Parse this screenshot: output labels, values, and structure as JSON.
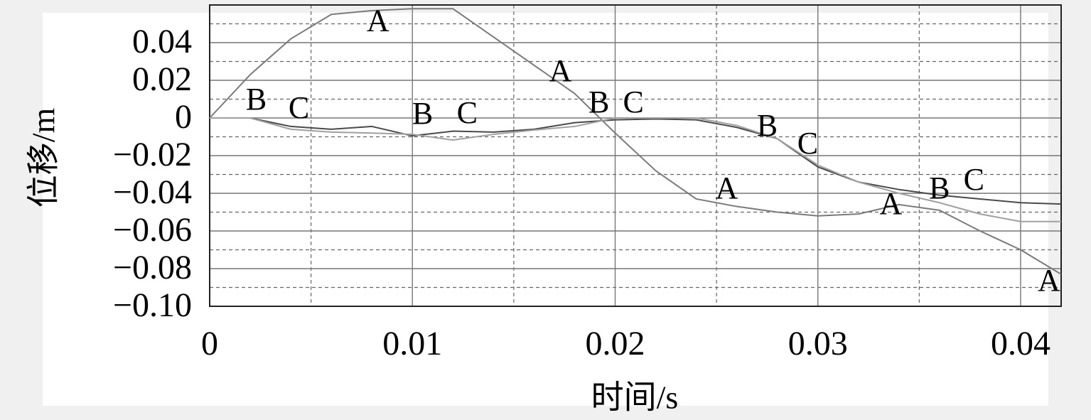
{
  "chart_data": {
    "type": "line",
    "x_label": "时间/s",
    "y_label": "位移/m",
    "x": [
      0,
      0.002,
      0.004,
      0.006,
      0.008,
      0.01,
      0.012,
      0.014,
      0.016,
      0.018,
      0.02,
      0.022,
      0.024,
      0.026,
      0.028,
      0.03,
      0.032,
      0.034,
      0.036,
      0.038,
      0.04,
      0.042
    ],
    "series": [
      {
        "name": "A",
        "color": "#7a7a7a",
        "values": [
          0,
          0.023,
          0.042,
          0.055,
          0.057,
          0.058,
          0.058,
          0.043,
          0.028,
          0.013,
          -0.008,
          -0.028,
          -0.043,
          -0.047,
          -0.05,
          -0.052,
          -0.051,
          -0.046,
          -0.049,
          -0.06,
          -0.07,
          -0.083
        ]
      },
      {
        "name": "B",
        "color": "#4a4a4a",
        "values": [
          0,
          0,
          -0.0045,
          -0.006,
          -0.0045,
          -0.0095,
          -0.007,
          -0.0075,
          -0.006,
          -0.0025,
          -0.001,
          -0.0005,
          -0.001,
          -0.005,
          -0.011,
          -0.026,
          -0.034,
          -0.038,
          -0.041,
          -0.043,
          -0.045,
          -0.0457
        ]
      },
      {
        "name": "C",
        "color": "#a0a0a0",
        "values": [
          0,
          0,
          -0.006,
          -0.0075,
          -0.008,
          -0.0087,
          -0.0117,
          -0.0087,
          -0.0064,
          -0.0045,
          0,
          0,
          0,
          -0.004,
          -0.011,
          -0.025,
          -0.034,
          -0.04,
          -0.045,
          -0.051,
          -0.055,
          -0.055
        ]
      }
    ],
    "xlim": [
      0,
      0.042
    ],
    "ylim": [
      -0.1,
      0.06
    ],
    "xticks": [
      0,
      0.01,
      0.02,
      0.03,
      0.04
    ],
    "yticks": [
      {
        "value": -0.1,
        "label": "−0.10"
      },
      {
        "value": -0.08,
        "label": "−0.08"
      },
      {
        "value": -0.06,
        "label": "−0.06"
      },
      {
        "value": -0.04,
        "label": "−0.04"
      },
      {
        "value": -0.02,
        "label": "−0.02"
      },
      0,
      0.02,
      0.04
    ],
    "minor_xticks": [
      0.005,
      0.015,
      0.025,
      0.035
    ],
    "minor_yticks": [
      -0.09,
      -0.07,
      -0.05,
      -0.03,
      -0.01,
      0.01,
      0.03,
      0.05
    ],
    "grid": true,
    "annotations": [
      {
        "text": "A",
        "x": 0.0083,
        "y": 0.05
      },
      {
        "text": "A",
        "x": 0.0173,
        "y": 0.0234
      },
      {
        "text": "B",
        "x": 0.0023,
        "y": 0.0083
      },
      {
        "text": "C",
        "x": 0.0044,
        "y": 0.0038
      },
      {
        "text": "B",
        "x": 0.0105,
        "y": 0.0008
      },
      {
        "text": "C",
        "x": 0.0127,
        "y": 0.0011
      },
      {
        "text": "B",
        "x": 0.0192,
        "y": 0.0068
      },
      {
        "text": "C",
        "x": 0.0209,
        "y": 0.0068
      },
      {
        "text": "B",
        "x": 0.0275,
        "y": -0.0057
      },
      {
        "text": "C",
        "x": 0.0295,
        "y": -0.0151
      },
      {
        "text": "A",
        "x": 0.0255,
        "y": -0.0389
      },
      {
        "text": "A",
        "x": 0.0336,
        "y": -0.0472
      },
      {
        "text": "B",
        "x": 0.036,
        "y": -0.0389
      },
      {
        "text": "C",
        "x": 0.0377,
        "y": -0.0343
      },
      {
        "text": "A",
        "x": 0.0414,
        "y": -0.0879
      }
    ]
  }
}
